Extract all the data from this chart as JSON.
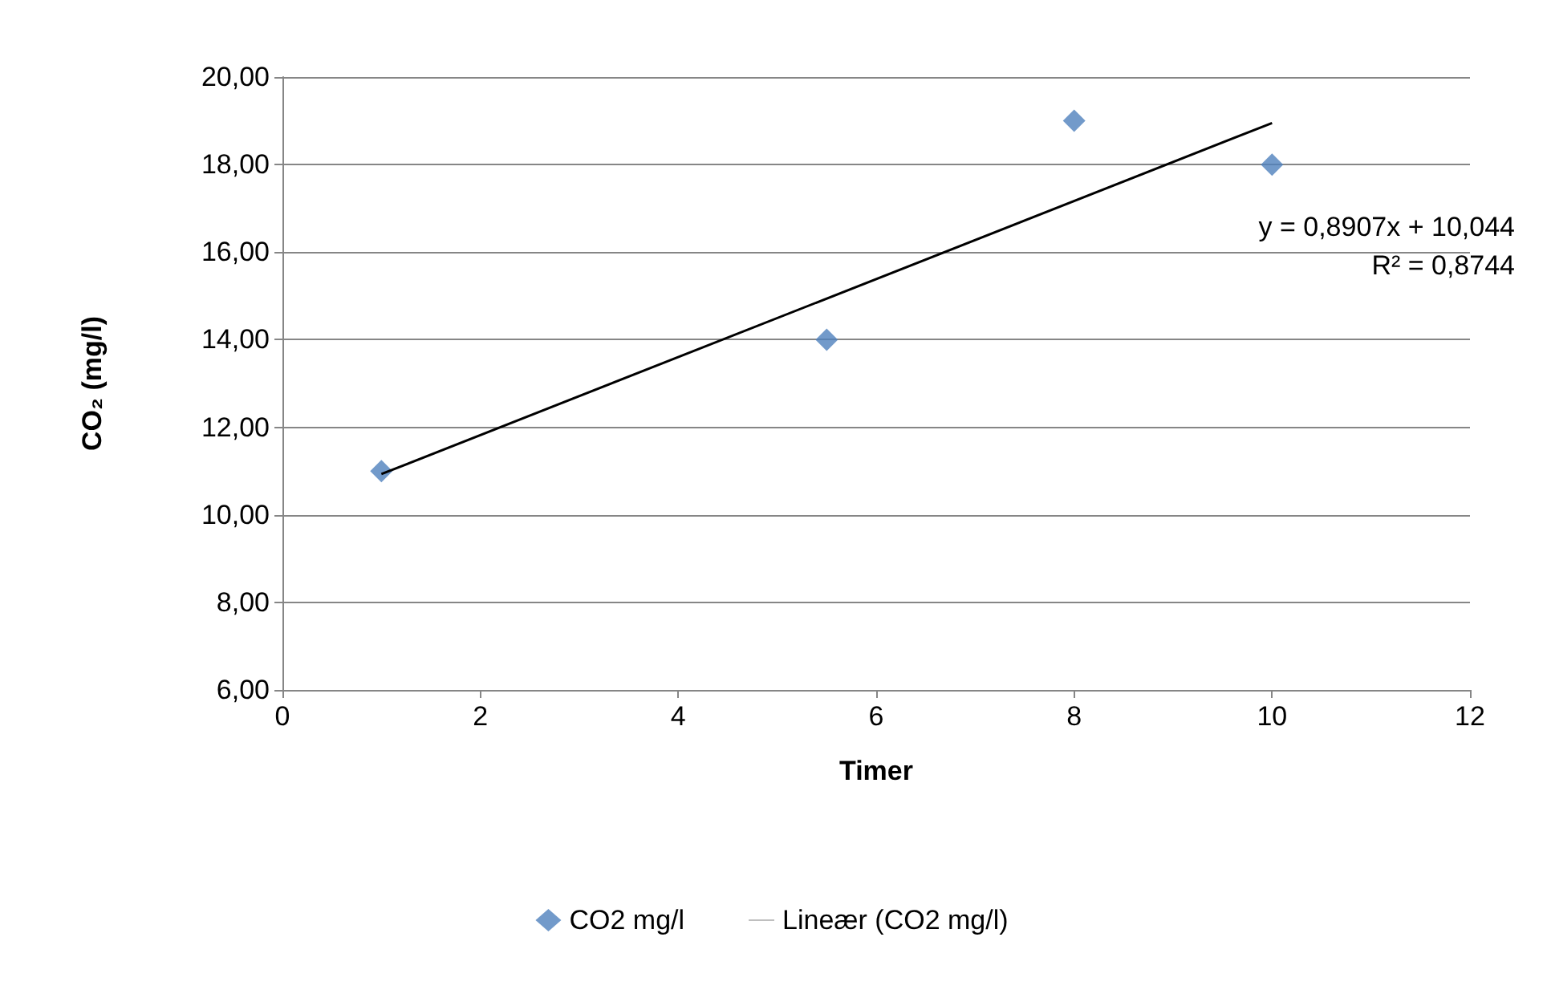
{
  "chart_data": {
    "type": "scatter",
    "xlabel": "Timer",
    "ylabel": "CO₂ (mg/l)",
    "xlim": [
      0,
      12
    ],
    "xticks": [
      0,
      2,
      4,
      6,
      8,
      10,
      12
    ],
    "ylim": [
      6,
      20
    ],
    "yticks": [
      {
        "value": 6,
        "label": "6,00"
      },
      {
        "value": 8,
        "label": "8,00"
      },
      {
        "value": 10,
        "label": "10,00"
      },
      {
        "value": 12,
        "label": "12,00"
      },
      {
        "value": 14,
        "label": "14,00"
      },
      {
        "value": 16,
        "label": "16,00"
      },
      {
        "value": 18,
        "label": "18,00"
      },
      {
        "value": 20,
        "label": "20,00"
      }
    ],
    "grid": "y",
    "legend": "bottom",
    "series": [
      {
        "name": "CO2 mg/l",
        "marker": "diamond",
        "color": "#4f81bd",
        "x": [
          1,
          5.5,
          8,
          10
        ],
        "values": [
          11,
          14,
          19,
          18
        ]
      },
      {
        "name": "Lineær (CO2 mg/l)",
        "type": "line",
        "marker": "none",
        "color": "#000000",
        "x": [
          1,
          10
        ],
        "values": [
          10.93,
          18.95
        ]
      }
    ],
    "annotations": [
      "y = 0,8907x + 10,044",
      "R² = 0,8744"
    ]
  }
}
